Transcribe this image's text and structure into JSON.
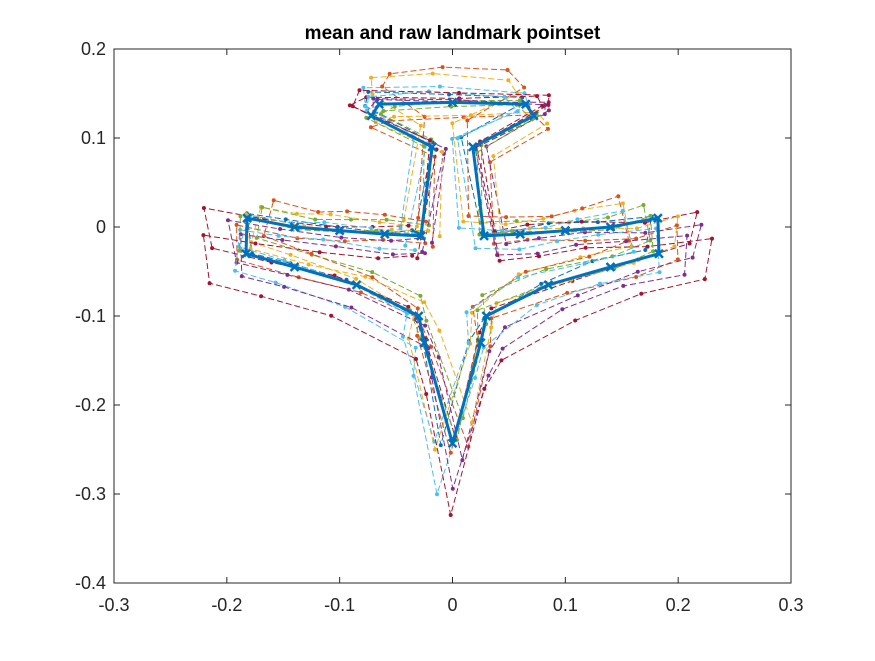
{
  "chart_data": {
    "type": "line",
    "title": "mean and raw landmark pointset",
    "xlabel": "",
    "ylabel": "",
    "xlim": [
      -0.3,
      0.3
    ],
    "ylim": [
      -0.4,
      0.2
    ],
    "xticks": [
      "-0.3",
      "-0.2",
      "-0.1",
      "0",
      "0.1",
      "0.2",
      "0.3"
    ],
    "yticks": [
      "-0.4",
      "-0.3",
      "-0.2",
      "-0.1",
      "0",
      "0.1",
      "0.2"
    ],
    "grid": false,
    "legend": "none",
    "mean_color": "#0072BD",
    "mean_shape": {
      "x": [
        -0.028,
        -0.018,
        -0.072,
        -0.065,
        0.0,
        0.065,
        0.072,
        0.018,
        0.028,
        0.06,
        0.1,
        0.14,
        0.182,
        0.183,
        0.14,
        0.085,
        0.03,
        0.025,
        0.0,
        -0.025,
        -0.03,
        -0.085,
        -0.14,
        -0.183,
        -0.182,
        -0.14,
        -0.1,
        -0.06,
        -0.028
      ],
      "y": [
        -0.01,
        0.09,
        0.125,
        0.138,
        0.14,
        0.138,
        0.125,
        0.09,
        -0.01,
        -0.008,
        -0.004,
        0.0,
        0.01,
        -0.03,
        -0.045,
        -0.065,
        -0.1,
        -0.13,
        -0.243,
        -0.13,
        -0.1,
        -0.065,
        -0.045,
        -0.03,
        0.01,
        0.0,
        -0.004,
        -0.008,
        -0.01
      ]
    },
    "raw_series": [
      {
        "color": "#0072BD",
        "dx": -0.006,
        "dy": 0.005,
        "sx": 0.97,
        "sy": 1.04
      },
      {
        "color": "#D95319",
        "dx": 0.008,
        "dy": -0.01,
        "sx": 1.07,
        "sy": 0.96
      },
      {
        "color": "#EDB120",
        "dx": -0.012,
        "dy": 0.015,
        "sx": 0.9,
        "sy": 1.1
      },
      {
        "color": "#7E2F8E",
        "dx": 0.01,
        "dy": -0.005,
        "sx": 1.13,
        "sy": 1.06
      },
      {
        "color": "#77AC30",
        "dx": 0.004,
        "dy": 0.012,
        "sx": 0.94,
        "sy": 0.92
      },
      {
        "color": "#4DBEEE",
        "dx": -0.008,
        "dy": -0.012,
        "sx": 1.02,
        "sy": 1.2
      },
      {
        "color": "#A2142F",
        "dx": 0.0,
        "dy": 0.008,
        "sx": 1.18,
        "sy": 1.0
      },
      {
        "color": "#D95319",
        "dx": -0.004,
        "dy": 0.02,
        "sx": 0.86,
        "sy": 1.12
      },
      {
        "color": "#7E2F8E",
        "dx": 0.006,
        "dy": -0.018,
        "sx": 1.08,
        "sy": 1.15
      },
      {
        "color": "#EDB120",
        "dx": 0.012,
        "dy": 0.002,
        "sx": 1.04,
        "sy": 0.9
      },
      {
        "color": "#4DBEEE",
        "dx": -0.015,
        "dy": 0.006,
        "sx": 0.93,
        "sy": 1.02
      },
      {
        "color": "#A2142F",
        "dx": 0.002,
        "dy": -0.022,
        "sx": 1.22,
        "sy": 1.25
      },
      {
        "color": "#77AC30",
        "dx": -0.002,
        "dy": 0.0,
        "sx": 1.0,
        "sy": 0.97
      }
    ]
  }
}
